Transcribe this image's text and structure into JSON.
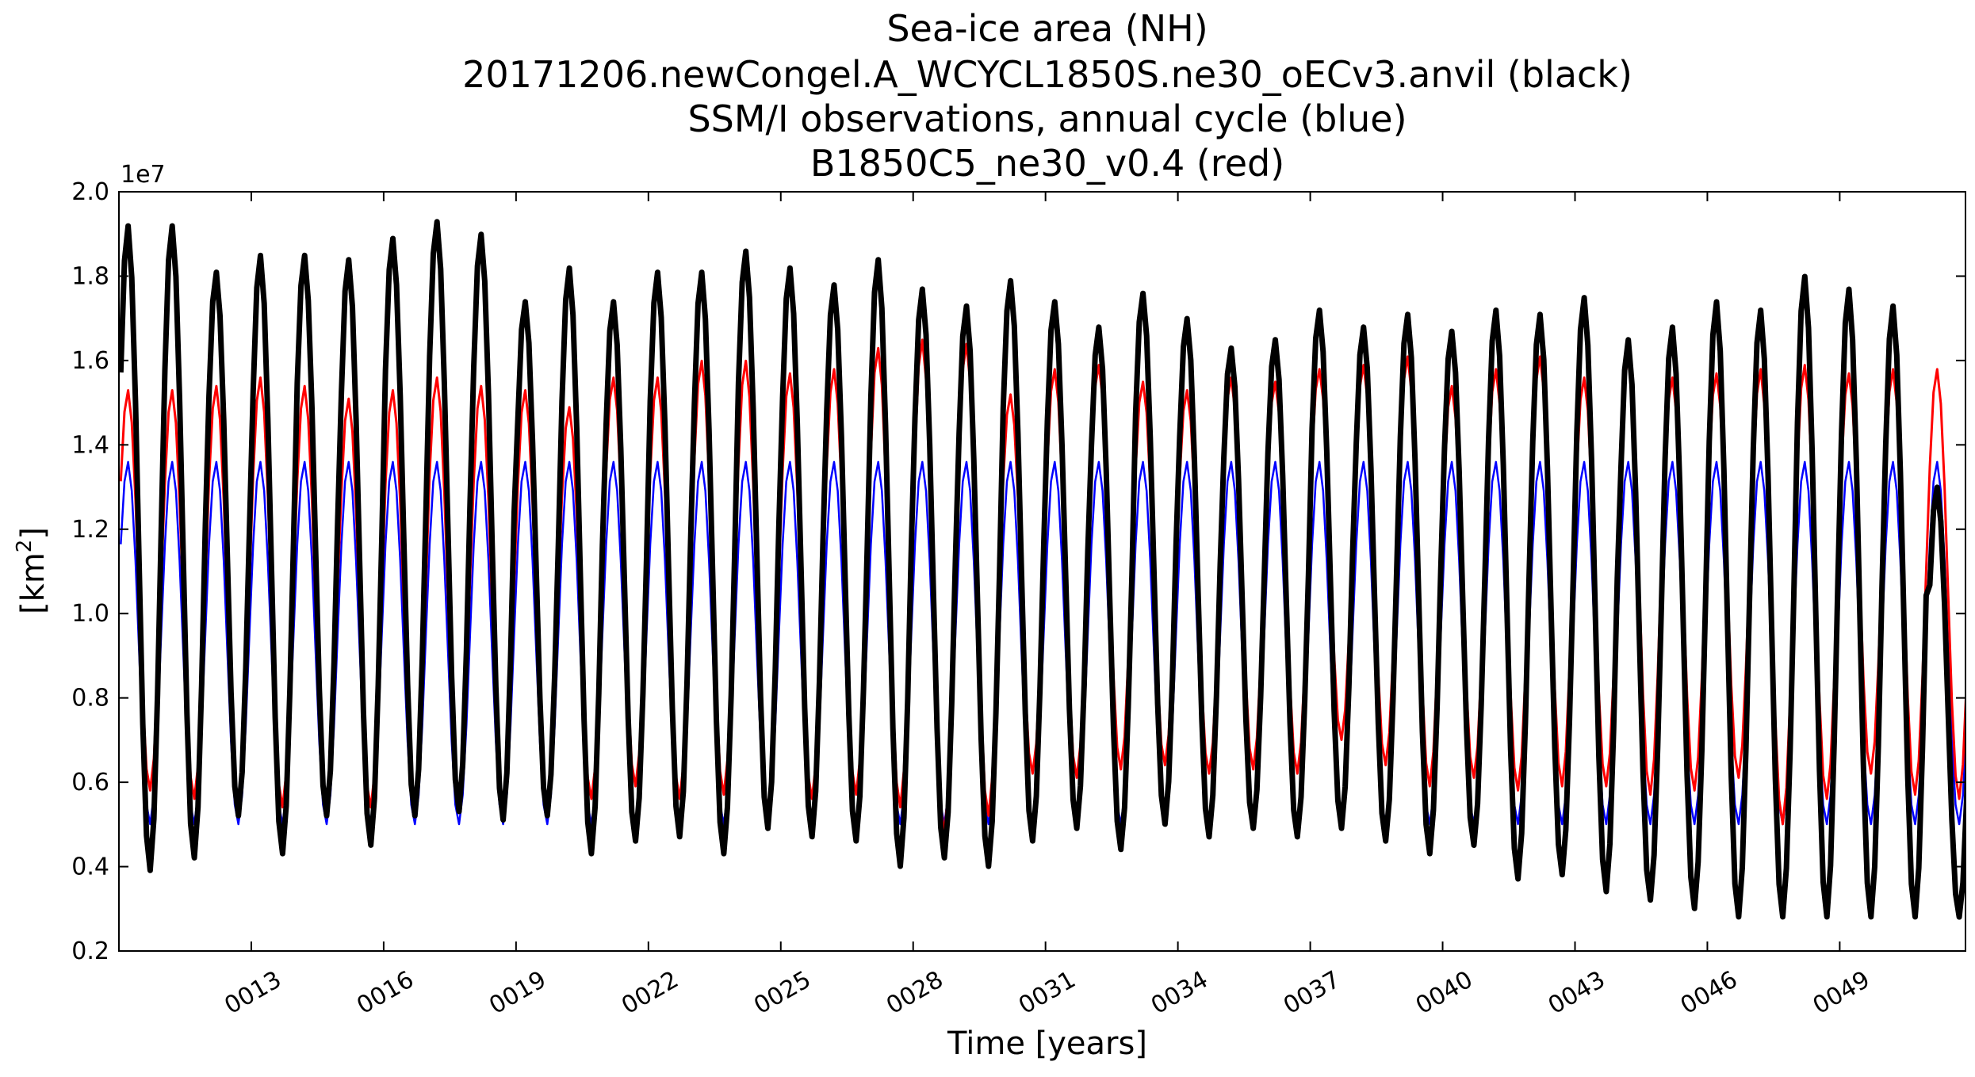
{
  "chart_data": {
    "type": "line",
    "title_lines": [
      "Sea-ice area (NH)",
      "20171206.newCongel.A_WCYCL1850S.ne30_oECv3.anvil (black)",
      "SSM/I observations, annual cycle (blue)",
      "B1850C5_ne30_v0.4 (red)"
    ],
    "xlabel": "Time [years]",
    "ylabel_main": "[km",
    "ylabel_sup": "2",
    "ylabel_end": "]",
    "y_offset_label": "1e7",
    "x_range": [
      10.0,
      51.85
    ],
    "ylim": [
      0.2,
      2.0
    ],
    "y_scale_factor": 10000000,
    "x_ticks": [
      13,
      16,
      19,
      22,
      25,
      28,
      31,
      34,
      37,
      40,
      43,
      46,
      49
    ],
    "x_tick_labels": [
      "0013",
      "0016",
      "0019",
      "0022",
      "0025",
      "0028",
      "0031",
      "0034",
      "0037",
      "0040",
      "0043",
      "0046",
      "0049"
    ],
    "y_ticks": [
      0.2,
      0.4,
      0.6,
      0.8,
      1.0,
      1.2,
      1.4,
      1.6,
      1.8,
      2.0
    ],
    "y_tick_labels": [
      "0.2",
      "0.4",
      "0.6",
      "0.8",
      "1.0",
      "1.2",
      "1.4",
      "1.6",
      "1.8",
      "2.0"
    ],
    "grid": false,
    "series": [
      {
        "color": "#0000ff",
        "stroke": "thin",
        "description_note": "",
        "annual_max": 1.36,
        "annual_min": 0.5,
        "per_year_max": [
          1.36,
          1.36,
          1.36,
          1.36,
          1.36,
          1.36,
          1.36,
          1.36,
          1.36,
          1.36,
          1.36,
          1.36,
          1.36,
          1.36,
          1.36,
          1.36,
          1.36,
          1.36,
          1.36,
          1.36,
          1.36,
          1.36,
          1.36,
          1.36,
          1.36,
          1.36,
          1.36,
          1.36,
          1.36,
          1.36,
          1.36,
          1.36,
          1.36,
          1.36,
          1.36,
          1.36,
          1.36,
          1.36,
          1.36,
          1.36,
          1.36,
          1.36
        ],
        "per_year_min": [
          0.5,
          0.5,
          0.5,
          0.5,
          0.5,
          0.5,
          0.5,
          0.5,
          0.5,
          0.5,
          0.5,
          0.5,
          0.5,
          0.5,
          0.5,
          0.5,
          0.5,
          0.5,
          0.5,
          0.5,
          0.5,
          0.5,
          0.5,
          0.5,
          0.5,
          0.5,
          0.5,
          0.5,
          0.5,
          0.5,
          0.5,
          0.5,
          0.5,
          0.5,
          0.5,
          0.5,
          0.5,
          0.5,
          0.5,
          0.5,
          0.5,
          0.5
        ]
      },
      {
        "color": "#ff0000",
        "stroke": "medium",
        "per_year_max": [
          1.53,
          1.53,
          1.54,
          1.56,
          1.54,
          1.51,
          1.53,
          1.56,
          1.54,
          1.53,
          1.49,
          1.56,
          1.56,
          1.6,
          1.6,
          1.57,
          1.58,
          1.63,
          1.65,
          1.64,
          1.52,
          1.58,
          1.59,
          1.55,
          1.53,
          1.56,
          1.55,
          1.58,
          1.59,
          1.61,
          1.54,
          1.58,
          1.61,
          1.56,
          1.61,
          1.56,
          1.57,
          1.58,
          1.59,
          1.57,
          1.58,
          1.58
        ],
        "per_year_min": [
          0.58,
          0.56,
          0.55,
          0.54,
          0.55,
          0.54,
          0.55,
          0.56,
          0.55,
          0.55,
          0.56,
          0.59,
          0.56,
          0.57,
          0.53,
          0.56,
          0.57,
          0.54,
          0.48,
          0.52,
          0.62,
          0.61,
          0.63,
          0.64,
          0.62,
          0.63,
          0.62,
          0.7,
          0.64,
          0.59,
          0.61,
          0.58,
          0.59,
          0.59,
          0.57,
          0.58,
          0.61,
          0.5,
          0.56,
          0.62,
          0.57,
          0.56
        ]
      },
      {
        "color": "#000000",
        "stroke": "thick",
        "per_year_max": [
          1.92,
          1.92,
          1.81,
          1.85,
          1.85,
          1.84,
          1.89,
          1.93,
          1.9,
          1.74,
          1.82,
          1.74,
          1.81,
          1.81,
          1.86,
          1.82,
          1.78,
          1.84,
          1.77,
          1.73,
          1.79,
          1.74,
          1.68,
          1.76,
          1.7,
          1.63,
          1.65,
          1.72,
          1.68,
          1.71,
          1.67,
          1.72,
          1.71,
          1.75,
          1.65,
          1.68,
          1.74,
          1.72,
          1.8,
          1.77,
          1.73,
          1.3
        ],
        "per_year_min": [
          0.39,
          0.42,
          0.52,
          0.43,
          0.52,
          0.45,
          0.52,
          0.53,
          0.51,
          0.52,
          0.43,
          0.46,
          0.47,
          0.43,
          0.49,
          0.47,
          0.46,
          0.4,
          0.42,
          0.4,
          0.46,
          0.49,
          0.44,
          0.5,
          0.47,
          0.49,
          0.47,
          0.49,
          0.46,
          0.43,
          0.45,
          0.37,
          0.38,
          0.34,
          0.32,
          0.3,
          0.28,
          0.28,
          0.28,
          0.28,
          0.28,
          0.28
        ]
      }
    ]
  }
}
